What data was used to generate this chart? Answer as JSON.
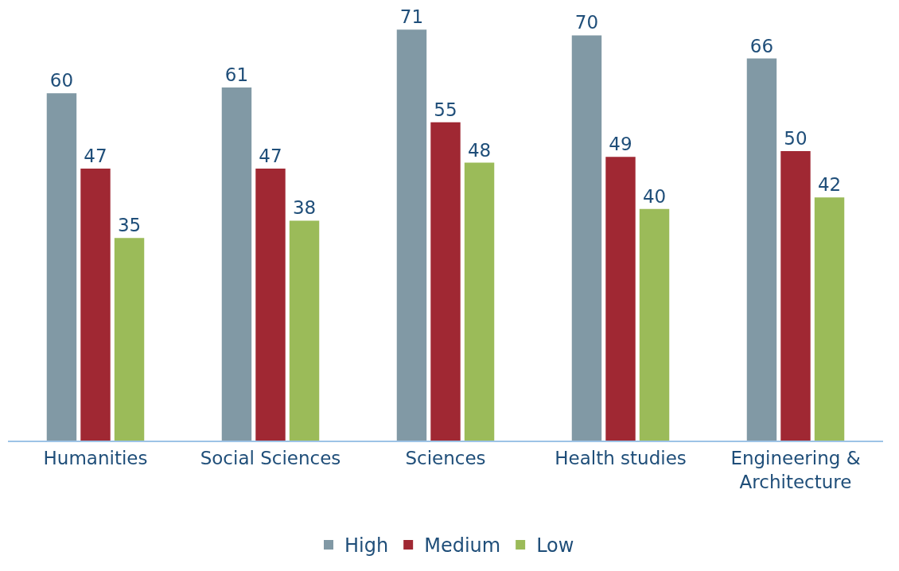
{
  "chart_data": {
    "type": "bar",
    "categories": [
      "Humanities",
      "Social Sciences",
      "Sciences",
      "Health studies",
      "Engineering & Architecture"
    ],
    "series": [
      {
        "name": "High",
        "color": "#8199a5",
        "values": [
          60,
          61,
          71,
          70,
          66
        ]
      },
      {
        "name": "Medium",
        "color": "#a02833",
        "values": [
          47,
          47,
          55,
          49,
          50
        ]
      },
      {
        "name": "Low",
        "color": "#9bbb59",
        "values": [
          35,
          38,
          48,
          40,
          42
        ]
      }
    ],
    "tick_labels": "x",
    "grid": false,
    "legend": "bottom",
    "data_labels": true
  }
}
